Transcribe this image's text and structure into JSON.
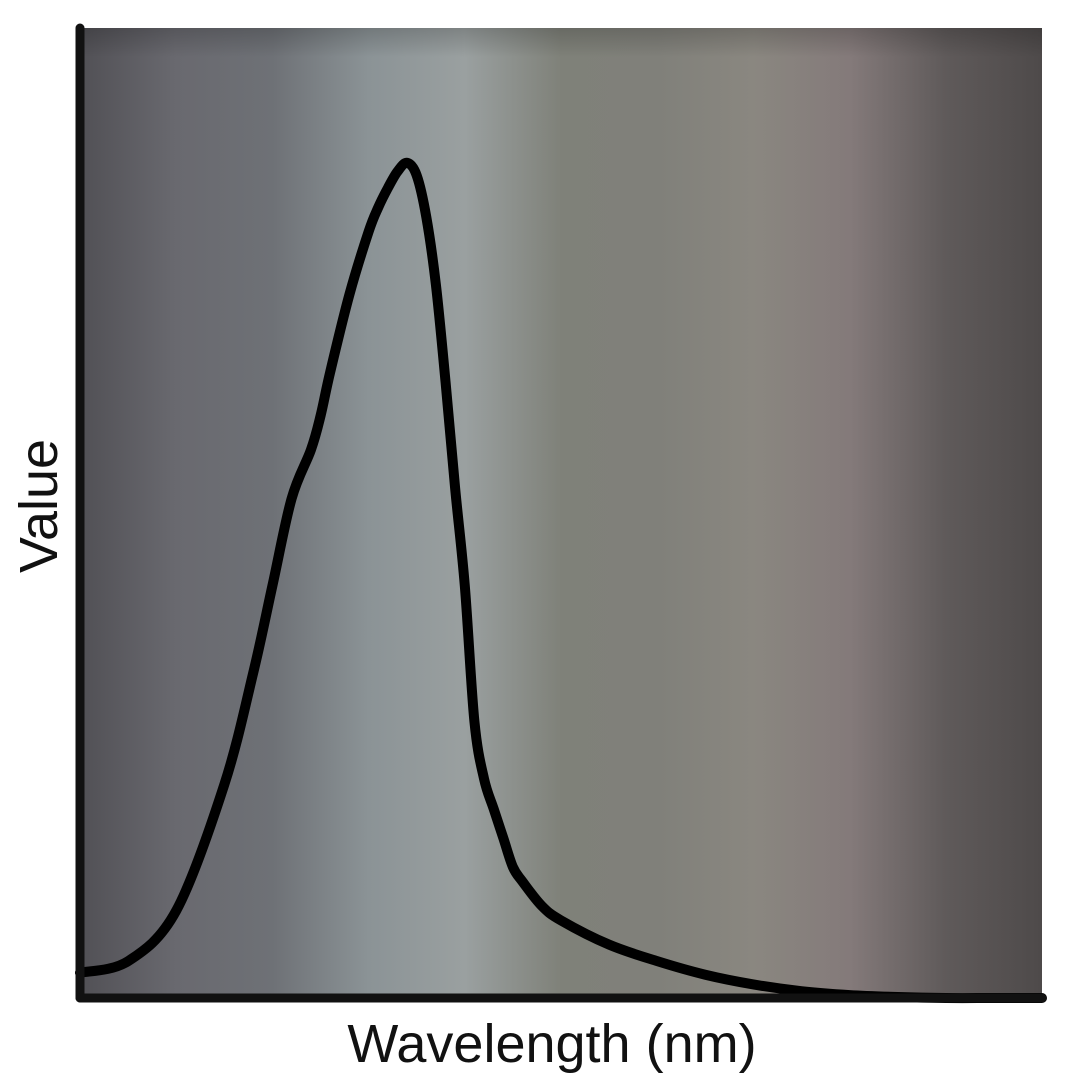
{
  "chart_data": {
    "type": "line",
    "title": "",
    "xlabel": "Wavelength (nm)",
    "ylabel": "Value",
    "x_ticks": [],
    "y_ticks": [],
    "xlim": [
      0,
      1
    ],
    "ylim": [
      0,
      1
    ],
    "grid": false,
    "legend": "none",
    "background": "color spectrum gradient (muted)",
    "series": [
      {
        "color": "#000000",
        "x": [
          0.0,
          0.05,
          0.1,
          0.15,
          0.18,
          0.2,
          0.22,
          0.24,
          0.25,
          0.26,
          0.28,
          0.3,
          0.31,
          0.32,
          0.33,
          0.34,
          0.35,
          0.36,
          0.37,
          0.38,
          0.39,
          0.4,
          0.41,
          0.42,
          0.43,
          0.44,
          0.45,
          0.46,
          0.48,
          0.5,
          0.55,
          0.6,
          0.65,
          0.7,
          0.75,
          0.8,
          0.85,
          0.9,
          0.95,
          1.0
        ],
        "y": [
          0.026,
          0.038,
          0.09,
          0.22,
          0.335,
          0.425,
          0.515,
          0.565,
          0.6,
          0.645,
          0.725,
          0.79,
          0.815,
          0.835,
          0.852,
          0.861,
          0.848,
          0.805,
          0.735,
          0.635,
          0.525,
          0.425,
          0.285,
          0.226,
          0.195,
          0.165,
          0.135,
          0.12,
          0.095,
          0.08,
          0.055,
          0.038,
          0.024,
          0.014,
          0.007,
          0.003,
          0.001,
          0.0,
          0.0,
          0.0
        ]
      }
    ]
  },
  "colors": {
    "axis": "#111111",
    "curve": "#000000",
    "text": "#111111",
    "background_stops": [
      "#515055",
      "#69696f",
      "#6e7176",
      "#8b9396",
      "#9aa0a0",
      "#7f8179",
      "#80807a",
      "#8a8780",
      "#847a7a",
      "#5f5a5a",
      "#4e4a4a"
    ]
  }
}
